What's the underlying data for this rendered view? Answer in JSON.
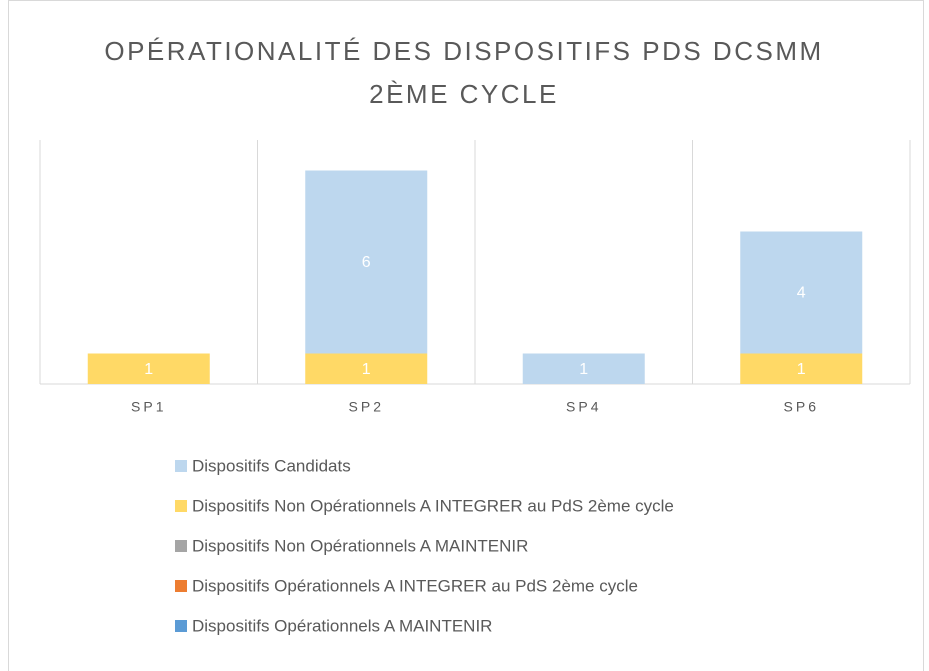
{
  "chart_data": {
    "type": "stacked_bar",
    "title": "OPÉRATIONALITÉ DES DISPOSITIFS PDS DCSMM 2ÈME CYCLE",
    "categories": [
      "SP1",
      "SP2",
      "SP4",
      "SP6"
    ],
    "series": [
      {
        "name": "Dispositifs Opérationnels A MAINTENIR",
        "color": "#5b9bd5",
        "values": [
          null,
          null,
          null,
          null
        ]
      },
      {
        "name": "Dispositifs Opérationnels A INTEGRER au PdS 2ème cycle",
        "color": "#ed7d31",
        "values": [
          null,
          null,
          null,
          null
        ]
      },
      {
        "name": "Dispositifs Non Opérationnels A MAINTENIR",
        "color": "#a5a5a5",
        "values": [
          null,
          null,
          null,
          null
        ]
      },
      {
        "name": "Dispositifs Non Opérationnels A INTEGRER au PdS 2ème cycle",
        "color": "#ffd966",
        "values": [
          1,
          1,
          null,
          1
        ]
      },
      {
        "name": "Dispositifs Candidats",
        "color": "#bdd7ee",
        "values": [
          null,
          6,
          1,
          4
        ]
      }
    ],
    "ylim": [
      0,
      8
    ]
  }
}
